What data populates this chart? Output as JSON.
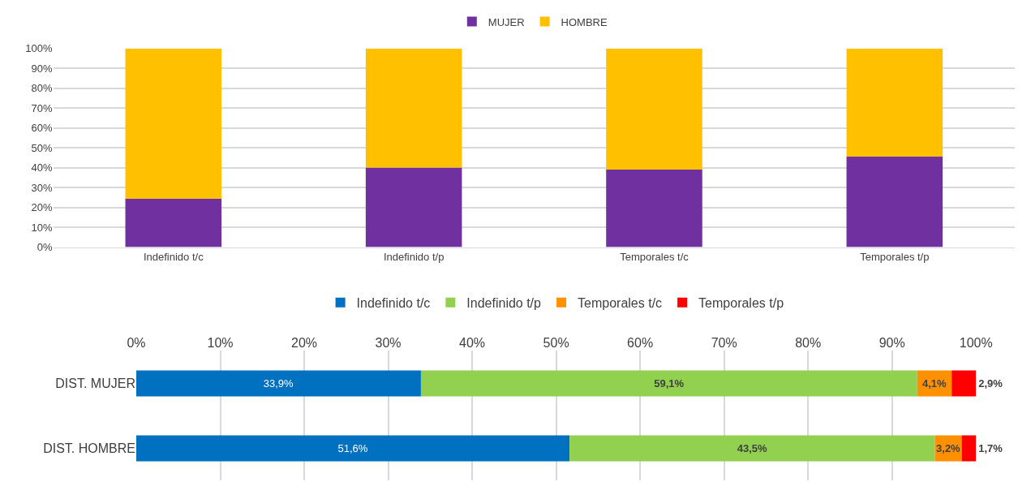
{
  "chart_data": [
    {
      "type": "bar",
      "stacked": true,
      "categories": [
        "Indefinido t/c",
        "Indefinido t/p",
        "Temporales t/c",
        "Temporales t/p"
      ],
      "series": [
        {
          "name": "MUJER",
          "color": "#7030a0",
          "values": [
            24.3,
            40.0,
            39.0,
            45.5
          ]
        },
        {
          "name": "HOMBRE",
          "color": "#ffc000",
          "values": [
            75.7,
            60.0,
            61.0,
            54.5
          ]
        }
      ],
      "ylim": [
        0,
        100
      ],
      "yticks": [
        {
          "value": 0,
          "label": "0%"
        },
        {
          "value": 10,
          "label": "10%"
        },
        {
          "value": 20,
          "label": "20%"
        },
        {
          "value": 30,
          "label": "30%"
        },
        {
          "value": 40,
          "label": "40%"
        },
        {
          "value": 50,
          "label": "50%"
        },
        {
          "value": 60,
          "label": "60%"
        },
        {
          "value": 70,
          "label": "70%"
        },
        {
          "value": 80,
          "label": "80%"
        },
        {
          "value": 90,
          "label": "90%"
        },
        {
          "value": 100,
          "label": "100%"
        }
      ],
      "grid": "y",
      "legend": "top"
    },
    {
      "type": "bar",
      "stacked": true,
      "orientation": "horizontal",
      "categories": [
        "DIST. MUJER",
        "DIST. HOMBRE"
      ],
      "series": [
        {
          "name": "Indefinido t/c",
          "color": "#0070c0",
          "values": [
            33.9,
            51.6
          ],
          "value_labels": [
            "33,9%",
            "51,6%"
          ]
        },
        {
          "name": "Indefinido t/p",
          "color": "#92d050",
          "values": [
            59.1,
            43.5
          ],
          "value_labels": [
            "59,1%",
            "43,5%"
          ]
        },
        {
          "name": "Temporales t/c",
          "color": "#ff9000",
          "values": [
            4.1,
            3.2
          ],
          "value_labels": [
            "4,1%",
            "3,2%"
          ]
        },
        {
          "name": "Temporales t/p",
          "color": "#ff0000",
          "values": [
            2.9,
            1.7
          ],
          "value_labels": [
            "2,9%",
            "1,7%"
          ]
        }
      ],
      "xlim": [
        0,
        100
      ],
      "xticks": [
        {
          "value": 0,
          "label": "0%"
        },
        {
          "value": 10,
          "label": "10%"
        },
        {
          "value": 20,
          "label": "20%"
        },
        {
          "value": 30,
          "label": "30%"
        },
        {
          "value": 40,
          "label": "40%"
        },
        {
          "value": 50,
          "label": "50%"
        },
        {
          "value": 60,
          "label": "60%"
        },
        {
          "value": 70,
          "label": "70%"
        },
        {
          "value": 80,
          "label": "80%"
        },
        {
          "value": 90,
          "label": "90%"
        },
        {
          "value": 100,
          "label": "100%"
        }
      ],
      "grid": "x",
      "legend": "top"
    }
  ]
}
